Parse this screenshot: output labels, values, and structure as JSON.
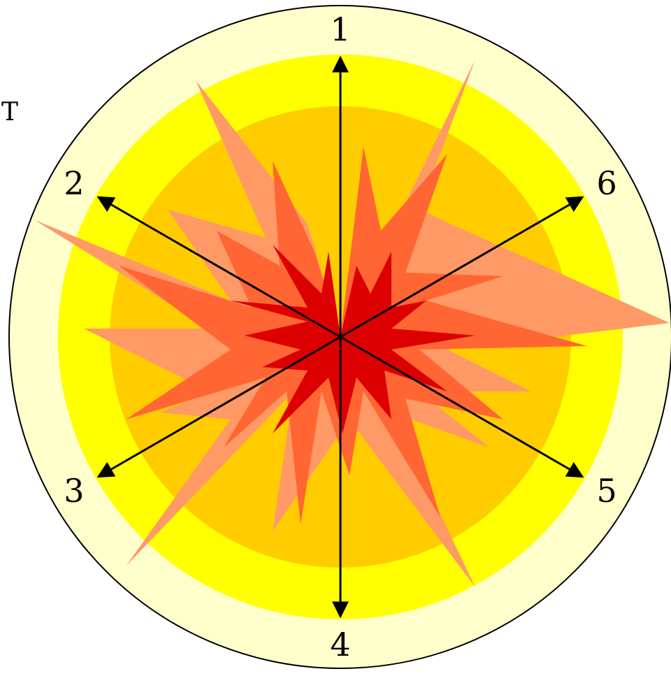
{
  "corner_text": "T",
  "colors": {
    "outer_ring": "#ffffcc",
    "middle_ring": "#ffff00",
    "inner_disc": "#ffcc00",
    "burst_light": "#ff9966",
    "burst_mid": "#ff6633",
    "burst_dark": "#dd0000",
    "axes": "#000000"
  },
  "axes": [
    {
      "id": "axis-1",
      "label": "1",
      "angle_deg": 90
    },
    {
      "id": "axis-2",
      "label": "2",
      "angle_deg": 150
    },
    {
      "id": "axis-3",
      "label": "3",
      "angle_deg": 210
    },
    {
      "id": "axis-4",
      "label": "4",
      "angle_deg": 270
    },
    {
      "id": "axis-5",
      "label": "5",
      "angle_deg": 330
    },
    {
      "id": "axis-6",
      "label": "6",
      "angle_deg": 30
    }
  ]
}
